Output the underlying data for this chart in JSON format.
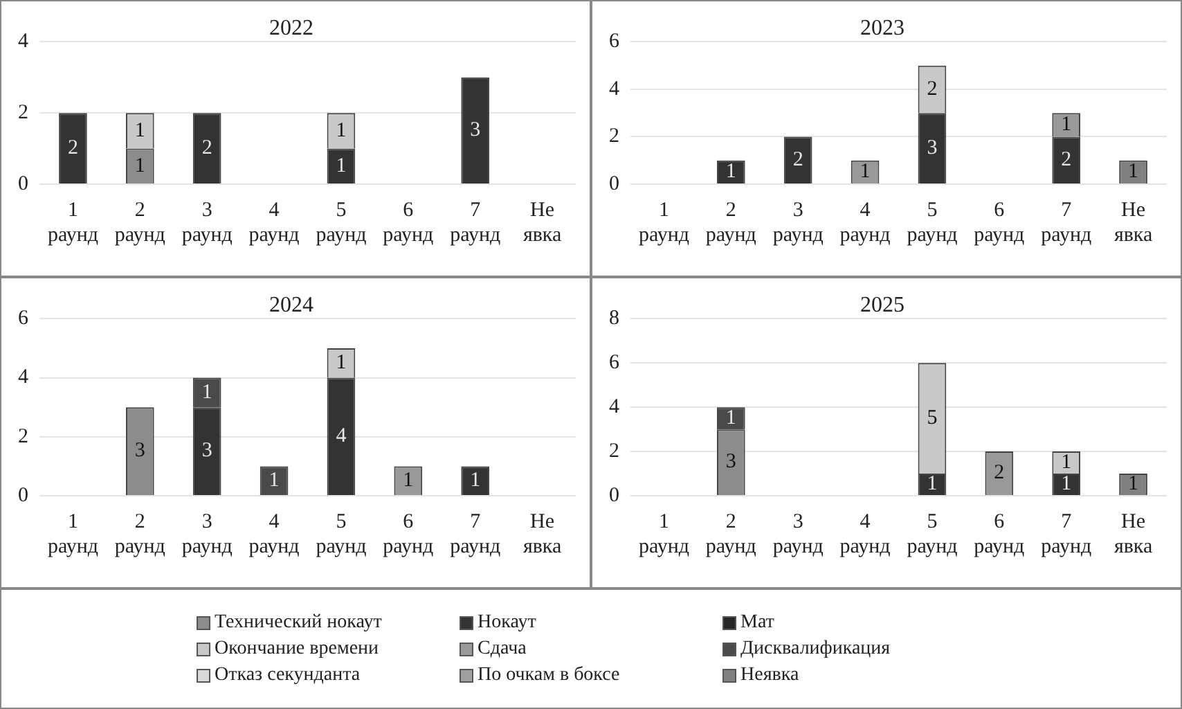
{
  "chart_data": [
    {
      "type": "bar",
      "title": "2022",
      "stacked": true,
      "data_labels": true,
      "grid": "y",
      "categories": [
        "1 раунд",
        "2 раунд",
        "3 раунд",
        "4 раунд",
        "5 раунд",
        "6 раунд",
        "7 раунд",
        "Не явка"
      ],
      "ylim": [
        0,
        4
      ],
      "yticks": [
        0,
        2,
        4
      ],
      "series": [
        {
          "color": "#8c8c8c",
          "values": [
            null,
            1,
            null,
            null,
            null,
            null,
            null,
            null
          ]
        },
        {
          "color": "#333333",
          "values": [
            2,
            null,
            2,
            null,
            1,
            null,
            3,
            null
          ]
        },
        {
          "color": "#c8c8c8",
          "values": [
            null,
            1,
            null,
            null,
            1,
            null,
            null,
            null
          ]
        }
      ]
    },
    {
      "type": "bar",
      "title": "2023",
      "stacked": true,
      "data_labels": true,
      "grid": "y",
      "categories": [
        "1 раунд",
        "2 раунд",
        "3 раунд",
        "4 раунд",
        "5 раунд",
        "6 раунд",
        "7 раунд",
        "Не явка"
      ],
      "ylim": [
        0,
        6
      ],
      "yticks": [
        0,
        2,
        4,
        6
      ],
      "series": [
        {
          "color": "#333333",
          "values": [
            null,
            1,
            2,
            null,
            3,
            null,
            2,
            null
          ]
        },
        {
          "color": "#c8c8c8",
          "values": [
            null,
            null,
            null,
            null,
            2,
            null,
            null,
            null
          ]
        },
        {
          "color": "#999999",
          "values": [
            null,
            null,
            null,
            1,
            null,
            null,
            1,
            null
          ]
        },
        {
          "color": "#808080",
          "values": [
            null,
            null,
            null,
            null,
            null,
            null,
            null,
            1
          ]
        }
      ]
    },
    {
      "type": "bar",
      "title": "2024",
      "stacked": true,
      "data_labels": true,
      "grid": "y",
      "categories": [
        "1 раунд",
        "2 раунд",
        "3 раунд",
        "4 раунд",
        "5 раунд",
        "6 раунд",
        "7 раунд",
        "Не явка"
      ],
      "ylim": [
        0,
        6
      ],
      "yticks": [
        0,
        2,
        4,
        6
      ],
      "series": [
        {
          "color": "#8c8c8c",
          "values": [
            null,
            3,
            null,
            null,
            null,
            null,
            null,
            null
          ]
        },
        {
          "color": "#333333",
          "values": [
            null,
            null,
            3,
            null,
            4,
            null,
            1,
            null
          ]
        },
        {
          "color": "#c8c8c8",
          "values": [
            null,
            null,
            null,
            null,
            1,
            null,
            null,
            null
          ]
        },
        {
          "color": "#999999",
          "values": [
            null,
            null,
            null,
            null,
            null,
            1,
            null,
            null
          ]
        },
        {
          "color": "#4a4a4a",
          "values": [
            null,
            null,
            1,
            1,
            null,
            null,
            null,
            null
          ]
        }
      ]
    },
    {
      "type": "bar",
      "title": "2025",
      "stacked": true,
      "data_labels": true,
      "grid": "y",
      "legend": "bottom",
      "categories": [
        "1 раунд",
        "2 раунд",
        "3 раунд",
        "4 раунд",
        "5 раунд",
        "6 раунд",
        "7 раунд",
        "Не явка"
      ],
      "ylim": [
        0,
        8
      ],
      "yticks": [
        0,
        2,
        4,
        6,
        8
      ],
      "series": [
        {
          "name": "Технический нокаут",
          "color": "#8c8c8c",
          "values": [
            null,
            3,
            null,
            null,
            null,
            null,
            null,
            null
          ]
        },
        {
          "name": "Нокаут",
          "color": "#333333",
          "values": [
            null,
            null,
            null,
            null,
            1,
            null,
            1,
            null
          ]
        },
        {
          "name": "Мат",
          "color": "#262626",
          "values": [
            null,
            null,
            null,
            null,
            null,
            null,
            null,
            null
          ]
        },
        {
          "name": "Окончание времени",
          "color": "#c8c8c8",
          "values": [
            null,
            null,
            null,
            null,
            5,
            null,
            1,
            null
          ]
        },
        {
          "name": "Сдача",
          "color": "#999999",
          "values": [
            null,
            null,
            null,
            null,
            null,
            2,
            null,
            null
          ]
        },
        {
          "name": "Дисквалификация",
          "color": "#4a4a4a",
          "values": [
            null,
            1,
            null,
            null,
            null,
            null,
            null,
            null
          ]
        },
        {
          "name": "Отказ секунданта",
          "color": "#d9d9d9",
          "values": [
            null,
            null,
            null,
            null,
            null,
            null,
            null,
            null
          ]
        },
        {
          "name": "По очкам в боксе",
          "color": "#a0a0a0",
          "values": [
            null,
            null,
            null,
            null,
            null,
            null,
            null,
            null
          ]
        },
        {
          "name": "Неявка",
          "color": "#808080",
          "values": [
            null,
            null,
            null,
            null,
            null,
            null,
            null,
            1
          ]
        }
      ]
    }
  ]
}
